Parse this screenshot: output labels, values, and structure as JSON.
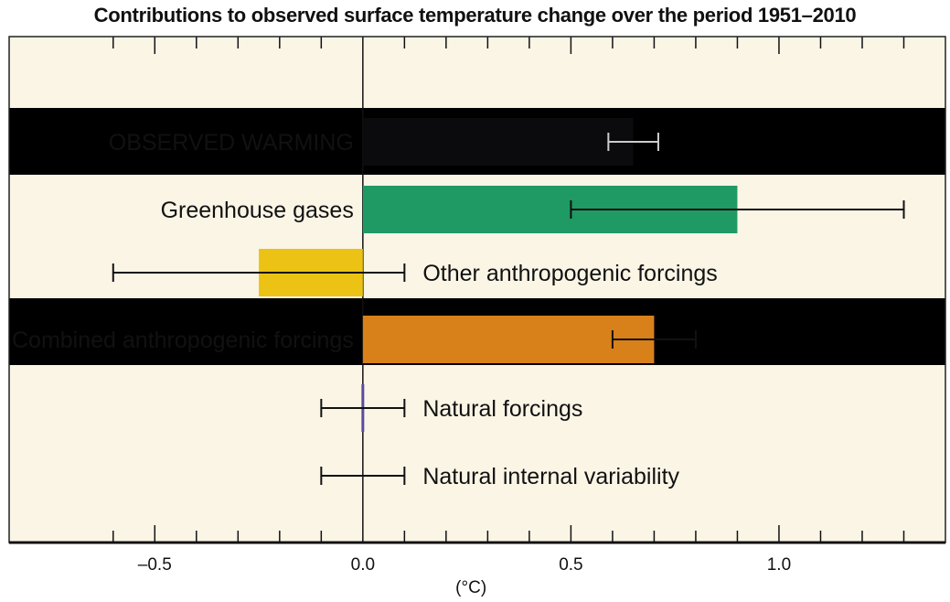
{
  "chart_data": {
    "type": "bar",
    "orientation": "horizontal",
    "title": "Contributions to observed surface temperature change over the period 1951–2010",
    "xlabel": "(°C)",
    "xlim": [
      -0.85,
      1.4
    ],
    "xticks": [
      -0.5,
      0.0,
      0.5,
      1.0
    ],
    "xtick_labels": [
      "–0.5",
      "0.0",
      "0.5",
      "1.0"
    ],
    "minor_tick_step": 0.1,
    "grid": false,
    "background": "#fbf5e6",
    "band_color": "#dcdcdc",
    "categories": [
      "OBSERVED WARMING",
      "Greenhouse gases",
      "Other anthropogenic forcings",
      "Combined anthropogenic forcings",
      "Natural forcings",
      "Natural internal variability"
    ],
    "values": [
      0.65,
      0.9,
      -0.25,
      0.7,
      0.0,
      null
    ],
    "error_low": [
      0.59,
      0.5,
      -0.6,
      0.6,
      -0.1,
      -0.1
    ],
    "error_high": [
      0.71,
      1.3,
      0.1,
      0.8,
      0.1,
      0.1
    ],
    "colors": [
      "#0b0b0d",
      "#1f9a64",
      "#ecc215",
      "#d8801a",
      "#5b4ba0",
      null
    ],
    "shaded_rows": [
      true,
      false,
      false,
      true,
      false,
      false
    ]
  }
}
